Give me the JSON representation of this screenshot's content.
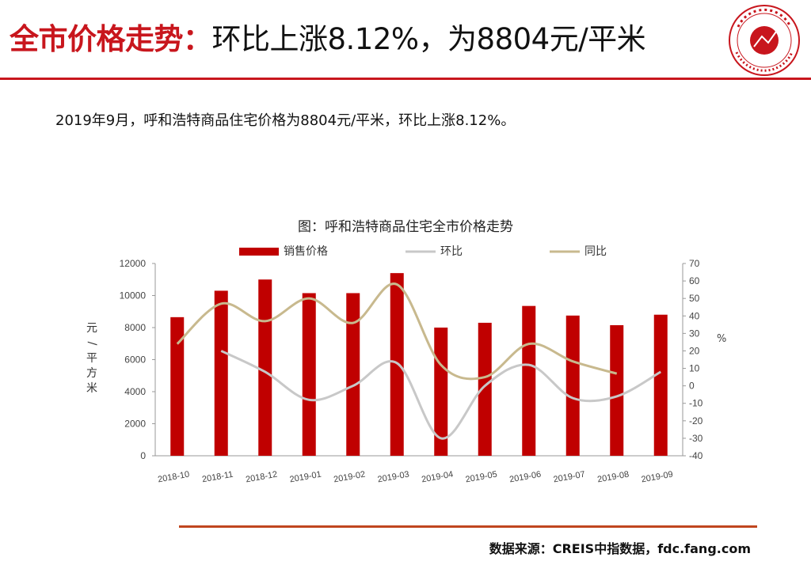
{
  "header": {
    "title_emphasis": "全市价格走势：",
    "title_rest": "环比上涨8.12%，为8804元/平米"
  },
  "summary": "2019年9月，呼和浩特商品住宅价格为8804元/平米，环比上涨8.12%。",
  "footer": {
    "source": "数据来源：CREIS中指数据，fdc.fang.com"
  },
  "colors": {
    "accent": "#c8161d",
    "bar": "#c00000",
    "mom": "#c8c8c8",
    "yoy": "#c8b98e"
  },
  "chart_data": {
    "type": "bar",
    "title": "图：呼和浩特商品住宅全市价格走势",
    "categories": [
      "2018-10",
      "2018-11",
      "2018-12",
      "2019-01",
      "2019-02",
      "2019-03",
      "2019-04",
      "2019-05",
      "2019-06",
      "2019-07",
      "2019-08",
      "2019-09"
    ],
    "ylabel": "元/平方米",
    "y2label": "%",
    "ylim": [
      0,
      12000
    ],
    "y2lim": [
      -40,
      70
    ],
    "yticks": [
      "0",
      "2000",
      "4000",
      "6000",
      "8000",
      "10000",
      "12000"
    ],
    "y2ticks": [
      "-40",
      "-30",
      "-20",
      "-10",
      "0",
      "10",
      "20",
      "30",
      "40",
      "50",
      "60",
      "70"
    ],
    "legend_position": "top",
    "series": [
      {
        "name": "销售价格",
        "type": "bar",
        "axis": "left",
        "values": [
          8650,
          10300,
          11000,
          10150,
          10150,
          11400,
          8000,
          8300,
          9350,
          8750,
          8150,
          8804
        ]
      },
      {
        "name": "环比",
        "type": "line",
        "axis": "right",
        "values": [
          null,
          20,
          8,
          -8,
          0,
          13,
          -30,
          0,
          12,
          -7,
          -6,
          8
        ]
      },
      {
        "name": "同比",
        "type": "line",
        "axis": "right",
        "values": [
          24,
          47,
          37,
          50,
          36,
          58,
          12,
          5,
          24,
          14,
          7,
          null
        ]
      }
    ]
  }
}
